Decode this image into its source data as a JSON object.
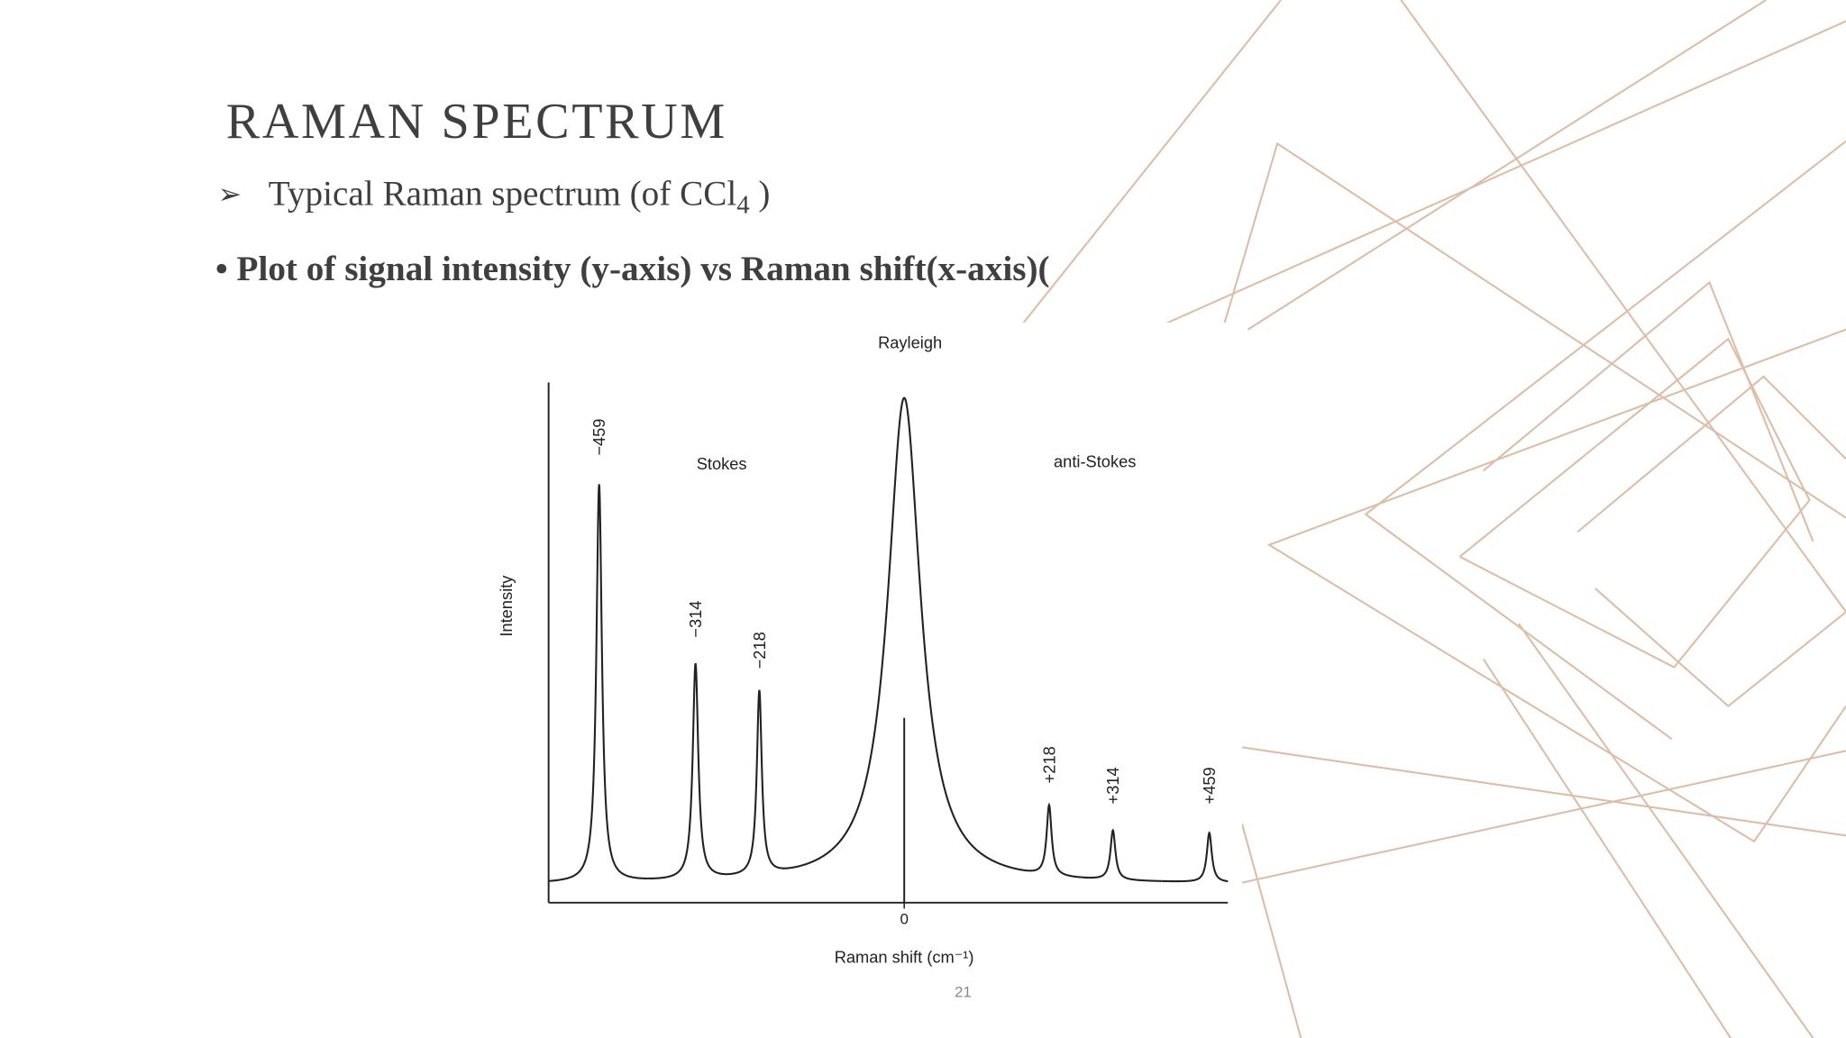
{
  "slide": {
    "title": "RAMAN SPECTRUM",
    "bullet_1": {
      "text": "Typical Raman spectrum (of CCl",
      "subscript": "4",
      "tail": " )"
    },
    "bullet_2": "Plot of signal intensity (y-axis) vs Raman shift(x-axis)(",
    "page_number": "21"
  },
  "chart_data": {
    "type": "spectrum",
    "x_label": "Raman shift (cm⁻¹)",
    "y_label": "Intensity",
    "annotations": [
      "Rayleigh",
      "Stokes",
      "anti-Stokes"
    ],
    "xlim": [
      -535,
      487
    ],
    "ylim": [
      0,
      100
    ],
    "xticks": [
      0
    ],
    "baseline": 3.5,
    "x": [
      -459,
      -314,
      -218,
      0,
      218,
      314,
      459
    ],
    "x_labels": [
      "−459",
      "−314",
      "−218",
      null,
      "+218",
      "+314",
      "+459"
    ],
    "values": [
      80,
      45,
      39,
      97,
      17,
      13,
      13
    ],
    "fwhm": [
      10,
      10,
      9,
      60,
      9,
      9,
      9
    ],
    "color": "#222222"
  }
}
